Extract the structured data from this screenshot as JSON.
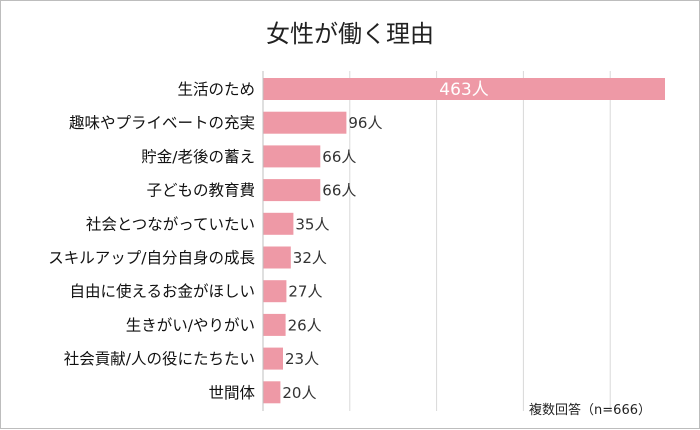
{
  "chart_data": {
    "type": "bar",
    "orientation": "horizontal",
    "title": "女性が働く理由",
    "note": "複数回答（n=666）",
    "categories": [
      "生活のため",
      "趣味やプライベートの充実",
      "貯金/老後の蓄え",
      "子どもの教育費",
      "社会とつながっていたい",
      "スキルアップ/自分自身の成長",
      "自由に使えるお金がほしい",
      "生きがい/やりがい",
      "社会貢献/人の役にたちたい",
      "世間体"
    ],
    "values": [
      463,
      96,
      66,
      66,
      35,
      32,
      27,
      26,
      23,
      20
    ],
    "value_labels": [
      "463人",
      "96人",
      "66人",
      "66人",
      "35人",
      "32人",
      "27人",
      "26人",
      "23人",
      "20人"
    ],
    "xlim": [
      0,
      463
    ],
    "grid": true,
    "bar_color": "#ee99a6",
    "grid_color": "#d9d9d9",
    "axis_color": "#bfbfbf"
  }
}
